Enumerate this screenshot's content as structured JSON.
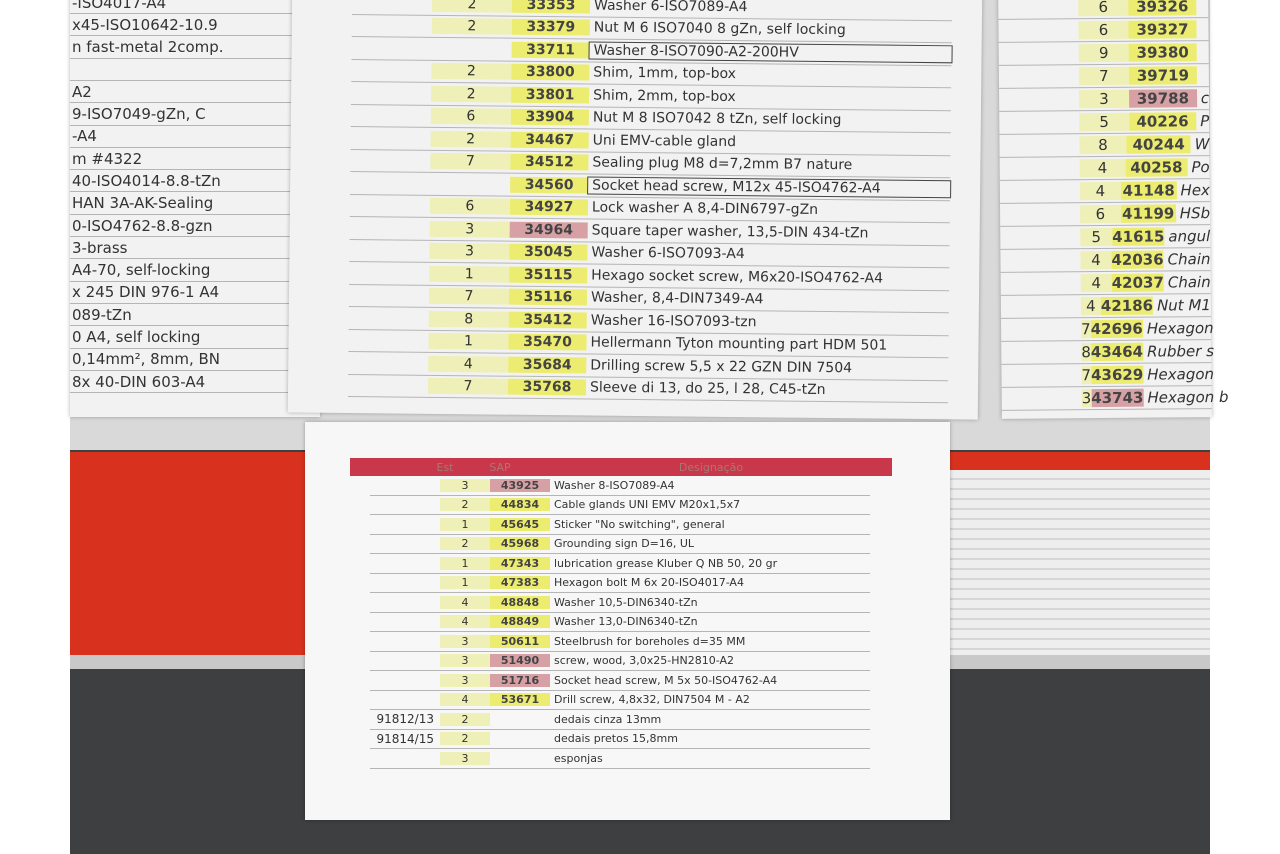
{
  "left_sheet": {
    "lines": [
      "-ISO4017-A4",
      "x45-ISO10642-10.9",
      "n fast-metal 2comp.",
      "",
      "A2",
      "9-ISO7049-gZn, C",
      "-A4",
      "m #4322",
      "40-ISO4014-8.8-tZn",
      "HAN 3A-AK-Sealing",
      "0-ISO4762-8.8-gzn",
      "3-brass",
      "A4-70, self-locking",
      "x 245 DIN 976-1 A4",
      "089-tZn",
      "0 A4, self locking",
      "0,14mm², 8mm, BN",
      "8x 40-DIN 603-A4"
    ]
  },
  "middle_sheet": {
    "rows": [
      {
        "qty": "2",
        "code": "33353",
        "desc": "Washer  6-ISO7089-A4",
        "color": "yellow"
      },
      {
        "qty": "2",
        "code": "33379",
        "desc": "Nut M 6 ISO7040 8 gZn, self locking",
        "color": "yellow"
      },
      {
        "qty": "",
        "code": "33711",
        "desc": "Washer  8-ISO7090-A2-200HV",
        "color": "yellow",
        "boxed": true
      },
      {
        "qty": "2",
        "code": "33800",
        "desc": "Shim, 1mm, top-box",
        "color": "yellow"
      },
      {
        "qty": "2",
        "code": "33801",
        "desc": "Shim, 2mm, top-box",
        "color": "yellow"
      },
      {
        "qty": "6",
        "code": "33904",
        "desc": "Nut M 8 ISO7042 8 tZn, self locking",
        "color": "yellow"
      },
      {
        "qty": "2",
        "code": "34467",
        "desc": "Uni EMV-cable gland",
        "color": "yellow"
      },
      {
        "qty": "7",
        "code": "34512",
        "desc": "Sealing plug M8 d=7,2mm B7 nature",
        "color": "yellow"
      },
      {
        "qty": "",
        "code": "34560",
        "desc": "Socket head screw, M12x 45-ISO4762-A4",
        "color": "yellow",
        "boxed": true
      },
      {
        "qty": "6",
        "code": "34927",
        "desc": "Lock washer A 8,4-DIN6797-gZn",
        "color": "yellow"
      },
      {
        "qty": "3",
        "code": "34964",
        "desc": "Square taper washer, 13,5-DIN 434-tZn",
        "color": "pink"
      },
      {
        "qty": "3",
        "code": "35045",
        "desc": "Washer  6-ISO7093-A4",
        "color": "yellow"
      },
      {
        "qty": "1",
        "code": "35115",
        "desc": "Hexago socket screw, M6x20-ISO4762-A4",
        "color": "yellow"
      },
      {
        "qty": "7",
        "code": "35116",
        "desc": "Washer,  8,4-DIN7349-A4",
        "color": "yellow"
      },
      {
        "qty": "8",
        "code": "35412",
        "desc": "Washer  16-ISO7093-tzn",
        "color": "yellow"
      },
      {
        "qty": "1",
        "code": "35470",
        "desc": "Hellermann Tyton mounting part HDM 501",
        "color": "yellow"
      },
      {
        "qty": "4",
        "code": "35684",
        "desc": "Drilling screw 5,5 x 22 GZN DIN 7504",
        "color": "yellow"
      },
      {
        "qty": "7",
        "code": "35768",
        "desc": "Sleeve  di 13, do 25, l 28, C45-tZn",
        "color": "yellow"
      }
    ]
  },
  "right_sheet": {
    "rows": [
      {
        "qty": "6",
        "code": "39326",
        "desc": "",
        "color": "yellow"
      },
      {
        "qty": "6",
        "code": "39327",
        "desc": "",
        "color": "yellow"
      },
      {
        "qty": "9",
        "code": "39380",
        "desc": "",
        "color": "yellow"
      },
      {
        "qty": "7",
        "code": "39719",
        "desc": "",
        "color": "yellow"
      },
      {
        "qty": "3",
        "code": "39788",
        "desc": "c",
        "color": "pink"
      },
      {
        "qty": "5",
        "code": "40226",
        "desc": "P",
        "color": "yellow"
      },
      {
        "qty": "8",
        "code": "40244",
        "desc": "W",
        "color": "yellow"
      },
      {
        "qty": "4",
        "code": "40258",
        "desc": "Po",
        "color": "yellow"
      },
      {
        "qty": "4",
        "code": "41148",
        "desc": "Hex",
        "color": "yellow"
      },
      {
        "qty": "6",
        "code": "41199",
        "desc": "HSb",
        "color": "yellow"
      },
      {
        "qty": "5",
        "code": "41615",
        "desc": "angul",
        "color": "yellow"
      },
      {
        "qty": "4",
        "code": "42036",
        "desc": "Chain",
        "color": "yellow"
      },
      {
        "qty": "4",
        "code": "42037",
        "desc": "Chain",
        "color": "yellow"
      },
      {
        "qty": "4",
        "code": "42186",
        "desc": "Nut M1",
        "color": "yellow"
      },
      {
        "qty": "7",
        "code": "42696",
        "desc": "Hexagon",
        "color": "yellow"
      },
      {
        "qty": "8",
        "code": "43464",
        "desc": "Rubber s",
        "color": "yellow"
      },
      {
        "qty": "7",
        "code": "43629",
        "desc": "Hexagon",
        "color": "yellow"
      },
      {
        "qty": "3",
        "code": "43743",
        "desc": "Hexagon b",
        "color": "pink"
      }
    ]
  },
  "front_sheet": {
    "header": {
      "qty": "Est",
      "code": "SAP",
      "desc": "Designação"
    },
    "header_color": "#c8374a",
    "rows": [
      {
        "ref": "",
        "qty": "3",
        "code": "43925",
        "desc": "Washer  8-ISO7089-A4",
        "color": "pink"
      },
      {
        "ref": "",
        "qty": "2",
        "code": "44834",
        "desc": "Cable glands UNI EMV M20x1,5x7",
        "color": "yellow"
      },
      {
        "ref": "",
        "qty": "1",
        "code": "45645",
        "desc": "Sticker \"No switching\", general",
        "color": "yellow"
      },
      {
        "ref": "",
        "qty": "2",
        "code": "45968",
        "desc": "Grounding sign  D=16, UL",
        "color": "yellow"
      },
      {
        "ref": "",
        "qty": "1",
        "code": "47343",
        "desc": "lubrication grease Kluber Q NB 50, 20 gr",
        "color": "yellow"
      },
      {
        "ref": "",
        "qty": "1",
        "code": "47383",
        "desc": "Hexagon bolt  M 6x 20-ISO4017-A4",
        "color": "yellow"
      },
      {
        "ref": "",
        "qty": "4",
        "code": "48848",
        "desc": "Washer  10,5-DIN6340-tZn",
        "color": "yellow"
      },
      {
        "ref": "",
        "qty": "4",
        "code": "48849",
        "desc": "Washer  13,0-DIN6340-tZn",
        "color": "yellow"
      },
      {
        "ref": "",
        "qty": "3",
        "code": "50611",
        "desc": "Steelbrush for boreholes d=35 MM",
        "color": "yellow"
      },
      {
        "ref": "",
        "qty": "3",
        "code": "51490",
        "desc": "screw, wood, 3,0x25-HN2810-A2",
        "color": "pink"
      },
      {
        "ref": "",
        "qty": "3",
        "code": "51716",
        "desc": "Socket head screw, M 5x 50-ISO4762-A4",
        "color": "pink"
      },
      {
        "ref": "",
        "qty": "4",
        "code": "53671",
        "desc": "Drill screw, 4,8x32, DIN7504 M - A2",
        "color": "yellow"
      },
      {
        "ref": "91812/13",
        "qty": "2",
        "code": "",
        "desc": "dedais cinza 13mm",
        "color": "none"
      },
      {
        "ref": "91814/15",
        "qty": "2",
        "code": "",
        "desc": "dedais pretos 15,8mm",
        "color": "none"
      },
      {
        "ref": "",
        "qty": "3",
        "code": "",
        "desc": "esponjas",
        "color": "none"
      }
    ]
  }
}
